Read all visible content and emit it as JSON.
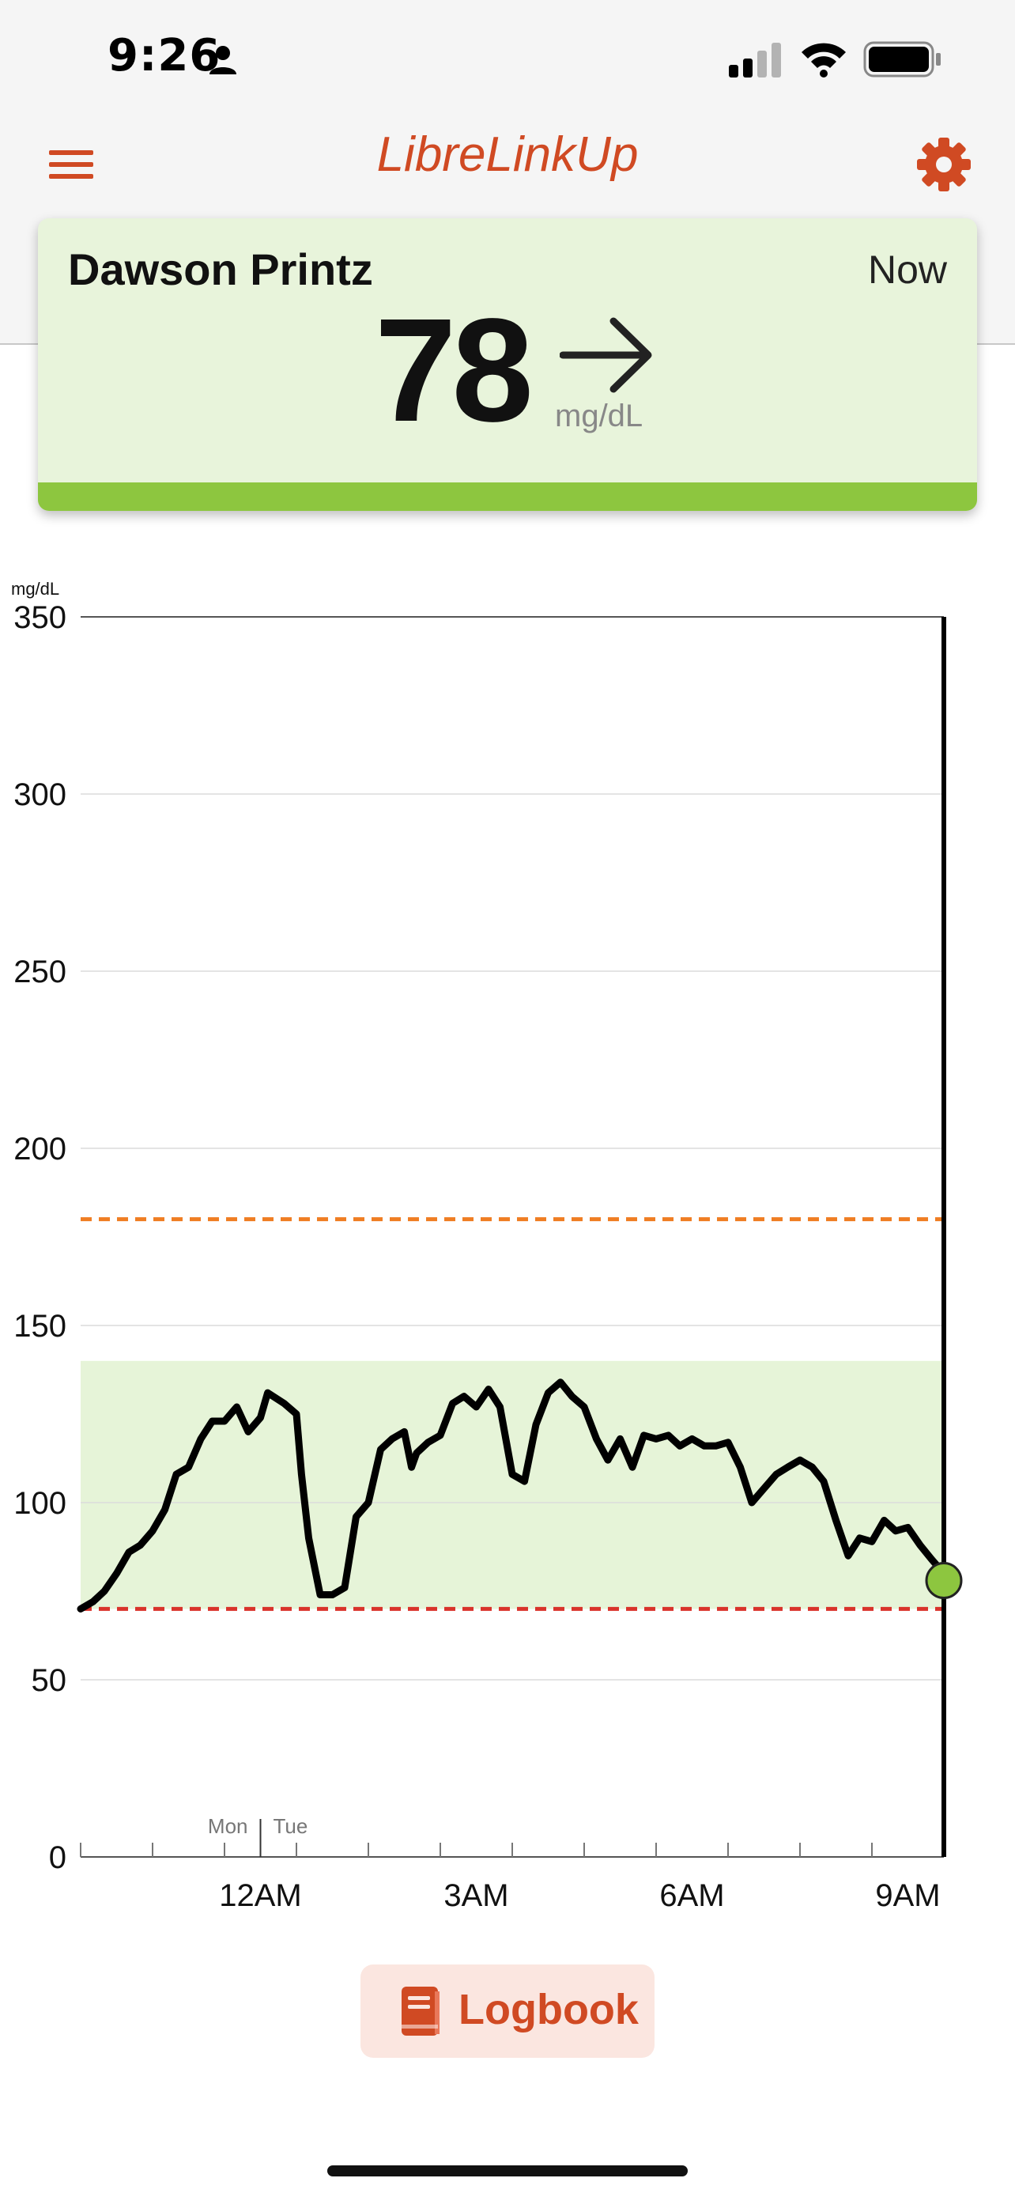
{
  "status_bar": {
    "time": "9:26"
  },
  "header": {
    "title": "LibreLinkUp",
    "brand_color": "#d04a23"
  },
  "reading": {
    "patient_name": "Dawson Printz",
    "time_label": "Now",
    "value": "78",
    "unit": "mg/dL",
    "trend": "steady",
    "trend_icon": "arrow-right-icon",
    "card_color": "#e8f4db",
    "status_color": "#8dc63f"
  },
  "chart_data": {
    "type": "line",
    "ylabel": "mg/dL",
    "ylim": [
      0,
      350
    ],
    "yticks": [
      "0",
      "50",
      "100",
      "150",
      "200",
      "250",
      "300",
      "350"
    ],
    "xticks": [
      "12AM",
      "3AM",
      "6AM",
      "9AM"
    ],
    "day_labels": [
      "Mon",
      "Tue"
    ],
    "target_range": [
      70,
      140
    ],
    "high_threshold": 180,
    "low_threshold": 70,
    "colors": {
      "line": "#000000",
      "target_band": "#e6f4d8",
      "high_line": "#ef7d22",
      "low_line": "#d9332b",
      "current_point": "#8dc63f"
    },
    "series": [
      {
        "x": [
          0,
          0.17,
          0.33,
          0.5,
          0.67,
          0.83,
          1,
          1.17,
          1.33,
          1.5,
          1.67,
          1.83,
          2,
          2.17,
          2.33,
          2.5,
          2.6,
          2.83,
          3,
          3.07,
          3.17,
          3.33,
          3.5,
          3.67,
          3.83,
          4,
          4.17,
          4.33,
          4.5,
          4.6,
          4.67,
          4.83,
          5,
          5.17,
          5.33,
          5.5,
          5.67,
          5.83,
          6,
          6.17,
          6.33,
          6.5,
          6.67,
          6.83,
          7,
          7.17,
          7.33,
          7.5,
          7.67,
          7.83,
          8,
          8.17,
          8.33,
          8.5,
          8.67,
          8.83,
          9,
          9.17,
          9.33,
          9.5,
          9.67,
          9.83,
          10,
          10.17,
          10.33,
          10.5,
          10.67,
          10.83,
          11,
          11.17,
          11.33,
          11.5,
          11.67,
          11.83,
          12,
          12.07
        ],
        "y": [
          70,
          72,
          75,
          80,
          86,
          88,
          92,
          98,
          108,
          110,
          118,
          123,
          123,
          127,
          120,
          124,
          131,
          128,
          125,
          108,
          90,
          74,
          74,
          76,
          96,
          100,
          115,
          118,
          120,
          110,
          114,
          117,
          119,
          128,
          130,
          127,
          132,
          127,
          108,
          106,
          122,
          131,
          134,
          130,
          127,
          118,
          112,
          118,
          110,
          119,
          118,
          119,
          116,
          118,
          116,
          116,
          117,
          110,
          100,
          104,
          108,
          110,
          112,
          110,
          106,
          95,
          85,
          90,
          89,
          95,
          92,
          93,
          88,
          84,
          80,
          78
        ]
      }
    ],
    "current_point": 78
  },
  "logbook": {
    "label": "Logbook"
  }
}
